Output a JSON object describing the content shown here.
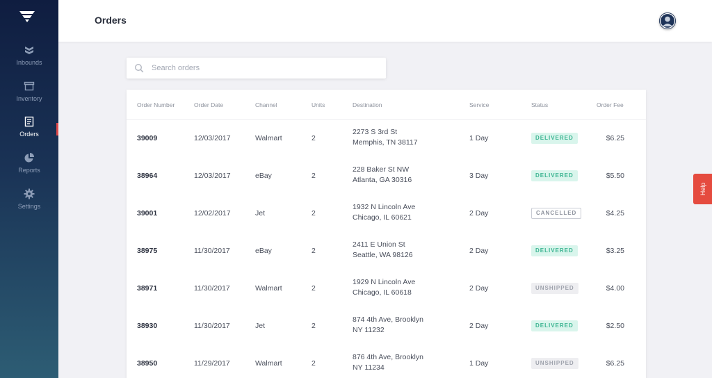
{
  "sidebar": {
    "items": [
      {
        "label": "Inbounds",
        "icon": "inbounds-icon"
      },
      {
        "label": "Inventory",
        "icon": "inventory-icon"
      },
      {
        "label": "Orders",
        "icon": "orders-icon",
        "active": true
      },
      {
        "label": "Reports",
        "icon": "reports-icon"
      },
      {
        "label": "Settings",
        "icon": "settings-icon"
      }
    ]
  },
  "header": {
    "title": "Orders"
  },
  "search": {
    "placeholder": "Search orders"
  },
  "table": {
    "columns": [
      "Order Number",
      "Order Date",
      "Channel",
      "Units",
      "Destination",
      "Service",
      "Status",
      "Order Fee"
    ],
    "rows": [
      {
        "number": "39009",
        "date": "12/03/2017",
        "channel": "Walmart",
        "units": "2",
        "dest1": "2273 S 3rd St",
        "dest2": "Memphis, TN 38117",
        "service": "1 Day",
        "status": "DELIVERED",
        "fee": "$6.25"
      },
      {
        "number": "38964",
        "date": "12/03/2017",
        "channel": "eBay",
        "units": "2",
        "dest1": "228 Baker St NW",
        "dest2": "Atlanta, GA 30316",
        "service": "3 Day",
        "status": "DELIVERED",
        "fee": "$5.50"
      },
      {
        "number": "39001",
        "date": "12/02/2017",
        "channel": "Jet",
        "units": "2",
        "dest1": "1932 N Lincoln Ave",
        "dest2": "Chicago, IL 60621",
        "service": "2 Day",
        "status": "CANCELLED",
        "fee": "$4.25"
      },
      {
        "number": "38975",
        "date": "11/30/2017",
        "channel": "eBay",
        "units": "2",
        "dest1": "2411 E Union St",
        "dest2": "Seattle, WA 98126",
        "service": "2 Day",
        "status": "DELIVERED",
        "fee": "$3.25"
      },
      {
        "number": "38971",
        "date": "11/30/2017",
        "channel": "Walmart",
        "units": "2",
        "dest1": "1929 N Lincoln Ave",
        "dest2": "Chicago, IL 60618",
        "service": "2 Day",
        "status": "UNSHIPPED",
        "fee": "$4.00"
      },
      {
        "number": "38930",
        "date": "11/30/2017",
        "channel": "Jet",
        "units": "2",
        "dest1": "874 4th Ave, Brooklyn",
        "dest2": "NY 11232",
        "service": "2 Day",
        "status": "DELIVERED",
        "fee": "$2.50"
      },
      {
        "number": "38950",
        "date": "11/29/2017",
        "channel": "Walmart",
        "units": "2",
        "dest1": "876 4th Ave, Brooklyn",
        "dest2": "NY 11234",
        "service": "1 Day",
        "status": "UNSHIPPED",
        "fee": "$6.25"
      }
    ]
  },
  "help": {
    "label": "Help"
  },
  "colors": {
    "accent": "#e54b3f",
    "delivered_bg": "#d9f5ec",
    "delivered_text": "#3cb592",
    "sidebar_top": "#0f1d40",
    "sidebar_bottom": "#2d5d74"
  }
}
